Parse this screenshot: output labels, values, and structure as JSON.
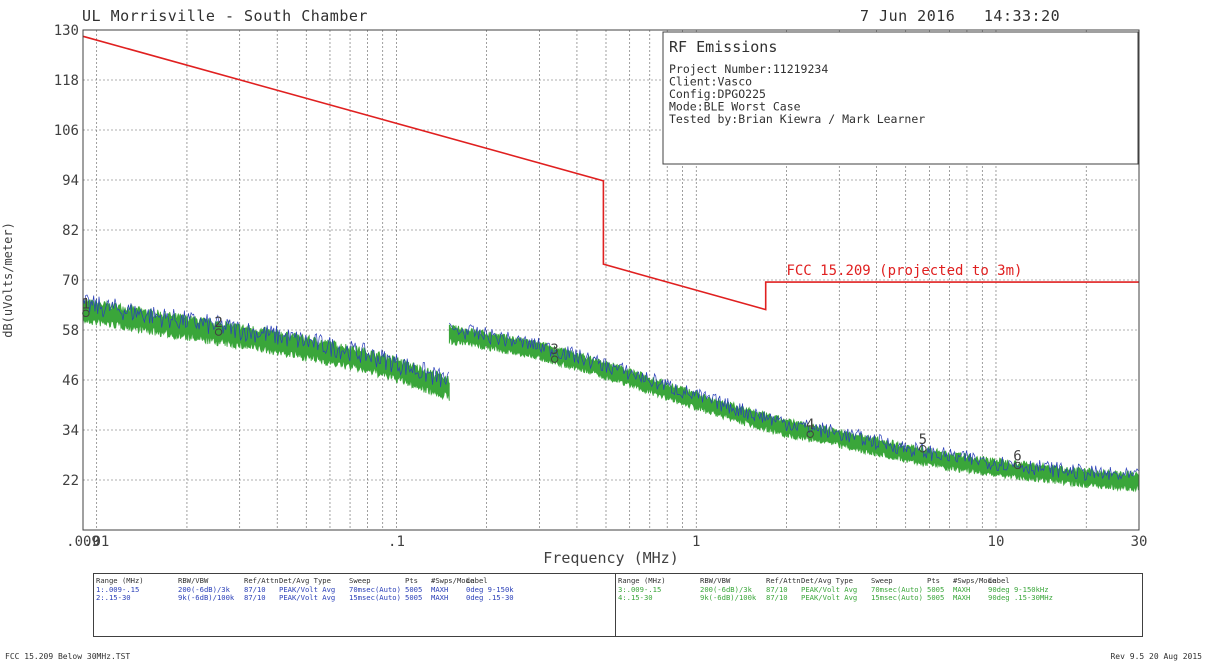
{
  "header": {
    "title": "UL Morrisville - South Chamber",
    "date": "7 Jun 2016",
    "time": "14:33:20"
  },
  "info_box": {
    "title": "RF Emissions",
    "lines": [
      "Project Number:11219234",
      "Client:Vasco",
      "Config:DPGO225",
      "Mode:BLE Worst Case",
      "Tested by:Brian Kiewra / Mark Learner"
    ]
  },
  "colors": {
    "limit": "#e02020",
    "trace_blue": "#2a3fb8",
    "trace_green": "#3aa63a",
    "grid": "#606060"
  },
  "chart_data": {
    "type": "line",
    "xscale": "log",
    "xlim": [
      0.009,
      30
    ],
    "ylim": [
      10,
      130
    ],
    "xlabel": "Frequency (MHz)",
    "ylabel": "dB(uVolts/meter)",
    "y_ticks": [
      130,
      118,
      106,
      94,
      82,
      70,
      58,
      46,
      34,
      22
    ],
    "x_tick_labels": [
      {
        "x": 0.009,
        "label": ".009"
      },
      {
        "x": 0.01,
        "label": ".01"
      },
      {
        "x": 0.1,
        "label": ".1"
      },
      {
        "x": 1,
        "label": "1"
      },
      {
        "x": 10,
        "label": "10"
      },
      {
        "x": 30,
        "label": "30"
      }
    ],
    "grid": true,
    "limit_line": {
      "name": "FCC 15.209 (projected to 3m)",
      "points": [
        [
          0.009,
          128.5
        ],
        [
          0.49,
          93.8
        ],
        [
          0.49,
          73.8
        ],
        [
          1.705,
          62.9
        ],
        [
          1.705,
          69.5
        ],
        [
          30,
          69.5
        ]
      ]
    },
    "series": [
      {
        "range": "1",
        "color": "blue",
        "x": [
          0.009,
          0.012,
          0.015,
          0.02,
          0.03,
          0.04,
          0.06,
          0.08,
          0.1,
          0.15
        ],
        "y": [
          62.5,
          61.3,
          60,
          58.5,
          56.5,
          55,
          52.5,
          50.5,
          48.5,
          44
        ]
      },
      {
        "range": "2",
        "color": "blue",
        "x": [
          0.15,
          0.2,
          0.3,
          0.4,
          0.6,
          1,
          1.5,
          2,
          3,
          5,
          7,
          10,
          15,
          20,
          30
        ],
        "y": [
          57,
          55.5,
          53,
          50.5,
          46.5,
          41,
          37,
          34.5,
          32,
          28.5,
          26.5,
          25,
          23.5,
          22.5,
          21.5
        ]
      }
    ],
    "markers": [
      {
        "label": "1",
        "x": 0.0092,
        "y": 62
      },
      {
        "label": "2",
        "x": 0.0255,
        "y": 57.5
      },
      {
        "label": "3",
        "x": 0.337,
        "y": 51
      },
      {
        "label": "4",
        "x": 2.4,
        "y": 33
      },
      {
        "label": "5",
        "x": 5.7,
        "y": 29.5
      },
      {
        "label": "6",
        "x": 11.8,
        "y": 25.5
      }
    ]
  },
  "settings_table": {
    "headers": [
      "Range (MHz)",
      "RBW/VBW",
      "Ref/Attn",
      "Det/Avg Type",
      "Sweep",
      "Pts",
      "#Swps/Mode",
      "Label"
    ],
    "left_rows": [
      [
        "1:.009-.15",
        "200(-6dB)/3k",
        "87/10",
        "PEAK/Volt Avg",
        "70msec(Auto)",
        "5005",
        "MAXH",
        "0deg 9-150k"
      ],
      [
        "2:.15-30",
        "9k(-6dB)/100k",
        "87/10",
        "PEAK/Volt Avg",
        "15msec(Auto)",
        "5005",
        "MAXH",
        "0deg .15-30"
      ]
    ],
    "right_rows": [
      [
        "3:.009-.15",
        "200(-6dB)/3k",
        "87/10",
        "PEAK/Volt Avg",
        "70msec(Auto)",
        "5005",
        "MAXH",
        "90deg 9-150kHz"
      ],
      [
        "4:.15-30",
        "9k(-6dB)/100k",
        "87/10",
        "PEAK/Volt Avg",
        "15msec(Auto)",
        "5005",
        "MAXH",
        "90deg .15-30MHz"
      ]
    ]
  },
  "footer": {
    "left": "FCC 15.209 Below 30MHz.TST",
    "right": "Rev 9.5 20 Aug 2015"
  }
}
